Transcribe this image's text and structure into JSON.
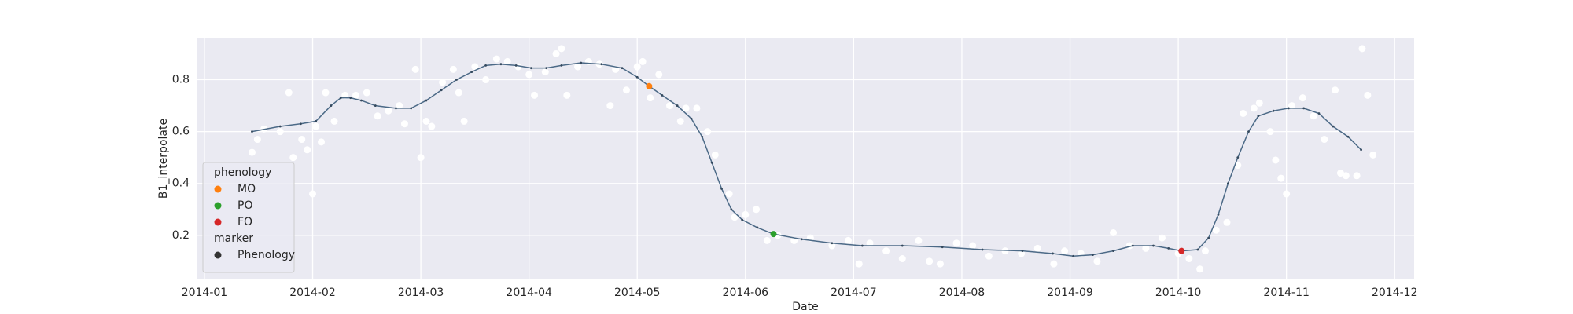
{
  "chart_data": {
    "type": "line",
    "xlabel": "Date",
    "ylabel": "B1_interpolate",
    "xlim": [
      -0.065,
      11.18
    ],
    "ylim": [
      0.03,
      0.962
    ],
    "xticks": [
      {
        "value": 0,
        "label": "2014-01"
      },
      {
        "value": 1,
        "label": "2014-02"
      },
      {
        "value": 2,
        "label": "2014-03"
      },
      {
        "value": 3,
        "label": "2014-04"
      },
      {
        "value": 4,
        "label": "2014-05"
      },
      {
        "value": 5,
        "label": "2014-06"
      },
      {
        "value": 6,
        "label": "2014-07"
      },
      {
        "value": 7,
        "label": "2014-08"
      },
      {
        "value": 8,
        "label": "2014-09"
      },
      {
        "value": 9,
        "label": "2014-10"
      },
      {
        "value": 10,
        "label": "2014-11"
      },
      {
        "value": 11,
        "label": "2014-12"
      }
    ],
    "yticks": [
      0.2,
      0.4,
      0.6,
      0.8
    ],
    "grid": true,
    "background": "#eaeaf2",
    "line": {
      "color": "#4c6a87",
      "x": [
        0.44,
        0.7,
        0.89,
        1.03,
        1.17,
        1.26,
        1.35,
        1.45,
        1.58,
        1.77,
        1.91,
        2.05,
        2.19,
        2.33,
        2.47,
        2.6,
        2.74,
        2.88,
        3.02,
        3.16,
        3.3,
        3.48,
        3.67,
        3.86,
        4.0,
        4.11,
        4.23,
        4.37,
        4.5,
        4.6,
        4.69,
        4.78,
        4.87,
        4.97,
        5.11,
        5.26,
        5.52,
        5.8,
        6.08,
        6.45,
        6.82,
        7.19,
        7.56,
        7.84,
        8.03,
        8.21,
        8.4,
        8.58,
        8.77,
        8.91,
        9.03,
        9.18,
        9.28,
        9.37,
        9.46,
        9.55,
        9.65,
        9.74,
        9.88,
        10.02,
        10.16,
        10.3,
        10.43,
        10.57,
        10.69
      ],
      "values": [
        0.6,
        0.62,
        0.63,
        0.64,
        0.7,
        0.73,
        0.73,
        0.72,
        0.7,
        0.69,
        0.69,
        0.72,
        0.76,
        0.8,
        0.83,
        0.855,
        0.86,
        0.855,
        0.845,
        0.845,
        0.855,
        0.865,
        0.86,
        0.845,
        0.81,
        0.775,
        0.74,
        0.7,
        0.65,
        0.58,
        0.48,
        0.38,
        0.3,
        0.26,
        0.23,
        0.205,
        0.185,
        0.17,
        0.16,
        0.16,
        0.155,
        0.145,
        0.14,
        0.13,
        0.12,
        0.125,
        0.14,
        0.16,
        0.16,
        0.15,
        0.14,
        0.145,
        0.19,
        0.28,
        0.4,
        0.5,
        0.6,
        0.66,
        0.68,
        0.69,
        0.69,
        0.67,
        0.62,
        0.58,
        0.53
      ]
    },
    "points": {
      "color": "#ffffff",
      "x": [
        0.44,
        0.49,
        0.55,
        0.7,
        0.78,
        0.82,
        0.9,
        0.95,
        1.0,
        1.03,
        1.08,
        1.12,
        1.2,
        1.3,
        1.4,
        1.5,
        1.6,
        1.7,
        1.8,
        1.85,
        1.95,
        2.0,
        2.05,
        2.1,
        2.2,
        2.3,
        2.35,
        2.4,
        2.5,
        2.6,
        2.7,
        2.8,
        2.9,
        3.0,
        3.05,
        3.15,
        3.25,
        3.3,
        3.35,
        3.45,
        3.55,
        3.65,
        3.75,
        3.8,
        3.9,
        4.0,
        4.05,
        4.12,
        4.2,
        4.3,
        4.4,
        4.45,
        4.55,
        4.65,
        4.72,
        4.85,
        4.9,
        5.0,
        5.1,
        5.2,
        5.3,
        5.45,
        5.6,
        5.8,
        5.95,
        6.05,
        6.15,
        6.3,
        6.45,
        6.6,
        6.7,
        6.8,
        6.95,
        7.1,
        7.25,
        7.4,
        7.55,
        7.7,
        7.85,
        7.95,
        8.1,
        8.25,
        8.4,
        8.55,
        8.7,
        8.85,
        9.0,
        9.1,
        9.2,
        9.25,
        9.35,
        9.45,
        9.55,
        9.6,
        9.7,
        9.75,
        9.85,
        9.9,
        9.95,
        10.0,
        10.05,
        10.15,
        10.25,
        10.35,
        10.45,
        10.5,
        10.55,
        10.65,
        10.7,
        10.75,
        10.8
      ],
      "values": [
        0.52,
        0.57,
        0.61,
        0.6,
        0.75,
        0.5,
        0.57,
        0.53,
        0.36,
        0.62,
        0.56,
        0.75,
        0.64,
        0.74,
        0.74,
        0.75,
        0.66,
        0.68,
        0.7,
        0.63,
        0.84,
        0.5,
        0.64,
        0.62,
        0.79,
        0.84,
        0.75,
        0.64,
        0.85,
        0.8,
        0.88,
        0.87,
        0.85,
        0.82,
        0.74,
        0.83,
        0.9,
        0.92,
        0.74,
        0.85,
        0.87,
        0.86,
        0.7,
        0.84,
        0.76,
        0.85,
        0.87,
        0.73,
        0.82,
        0.7,
        0.64,
        0.69,
        0.69,
        0.6,
        0.51,
        0.36,
        0.27,
        0.28,
        0.3,
        0.18,
        0.2,
        0.18,
        0.19,
        0.16,
        0.18,
        0.09,
        0.17,
        0.14,
        0.11,
        0.18,
        0.1,
        0.09,
        0.17,
        0.16,
        0.12,
        0.14,
        0.13,
        0.15,
        0.09,
        0.14,
        0.13,
        0.1,
        0.21,
        0.16,
        0.15,
        0.19,
        0.13,
        0.11,
        0.07,
        0.14,
        0.22,
        0.25,
        0.47,
        0.67,
        0.69,
        0.71,
        0.6,
        0.49,
        0.42,
        0.36,
        0.7,
        0.73,
        0.66,
        0.57,
        0.76,
        0.44,
        0.43,
        0.43,
        0.92,
        0.74,
        0.51
      ]
    },
    "legend": {
      "title": "phenology",
      "style_title": "marker",
      "style_label": "Phenology",
      "style_color": "#333333",
      "corner": "lower left"
    },
    "series": [
      {
        "name": "MO",
        "color": "#ff7f0e",
        "x": [
          4.11
        ],
        "values": [
          0.775
        ]
      },
      {
        "name": "PO",
        "color": "#2ca02c",
        "x": [
          5.26
        ],
        "values": [
          0.205
        ]
      },
      {
        "name": "FO",
        "color": "#d62728",
        "x": [
          9.03
        ],
        "values": [
          0.14
        ]
      }
    ]
  }
}
